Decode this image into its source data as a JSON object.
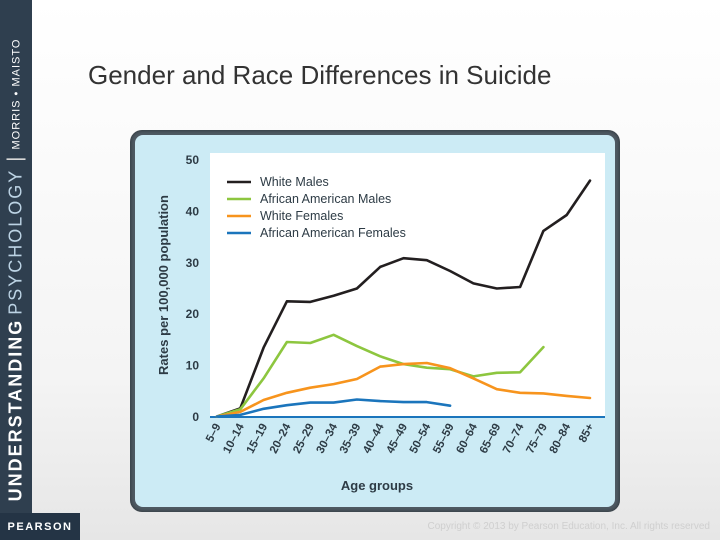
{
  "sidebar": {
    "book_title_main": "UNDERSTANDING",
    "book_title_accent": "PSYCHOLOGY",
    "separator": "|",
    "authors": "MORRIS • MAISTO"
  },
  "brand": {
    "logo_text": "PEARSON"
  },
  "slide": {
    "title": "Gender and Race Differences in Suicide"
  },
  "footer": {
    "copyright": "Copyright © 2013 by Pearson Education, Inc. All rights reserved"
  },
  "colors": {
    "white_males": "#231f20",
    "african_american_males": "#8dc63f",
    "white_females": "#f7941d",
    "african_american_females": "#1b75bc",
    "plot_background": "#ffffff",
    "panel_background": "#ccebf5"
  },
  "chart_data": {
    "type": "line",
    "title": "",
    "xlabel": "Age groups",
    "ylabel": "Rates per 100,000 population",
    "ylim": [
      0,
      50
    ],
    "yticks": [
      0,
      10,
      20,
      30,
      40,
      50
    ],
    "grid": false,
    "legend_position": "top-left",
    "categories": [
      "5–9",
      "10–14",
      "15–19",
      "20–24",
      "25–29",
      "30–34",
      "35–39",
      "40–44",
      "45–49",
      "50–54",
      "55–59",
      "60–64",
      "65–69",
      "70–74",
      "75–79",
      "80–84",
      "85+"
    ],
    "series": [
      {
        "name": "White Males",
        "color": "#231f20",
        "values": [
          0.1,
          1.7,
          13.5,
          22.5,
          22.4,
          23.6,
          25.0,
          29.2,
          30.9,
          30.5,
          28.4,
          26.0,
          25.0,
          25.3,
          36.2,
          39.3,
          46.0
        ]
      },
      {
        "name": "African American Males",
        "color": "#8dc63f",
        "values": [
          0.1,
          1.5,
          7.5,
          14.6,
          14.4,
          16.0,
          13.8,
          11.8,
          10.3,
          9.6,
          9.3,
          7.9,
          8.6,
          8.7,
          13.6,
          null,
          null
        ]
      },
      {
        "name": "White Females",
        "color": "#f7941d",
        "values": [
          0.1,
          1.0,
          3.3,
          4.7,
          5.7,
          6.4,
          7.4,
          9.8,
          10.3,
          10.5,
          9.5,
          7.5,
          5.4,
          4.7,
          4.6,
          4.1,
          3.7
        ]
      },
      {
        "name": "African American Females",
        "color": "#1b75bc",
        "values": [
          0.1,
          0.4,
          1.6,
          2.3,
          2.8,
          2.8,
          3.4,
          3.1,
          2.9,
          2.9,
          2.2,
          null,
          null,
          null,
          null,
          null,
          null
        ]
      }
    ]
  }
}
